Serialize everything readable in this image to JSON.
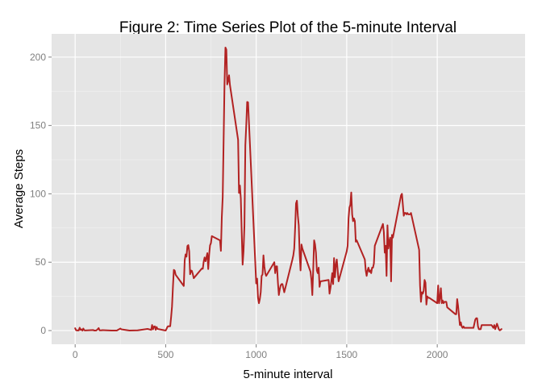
{
  "chart_data": {
    "type": "line",
    "title": "Figure 2: Time Series Plot of the 5-minute Interval",
    "xlabel": "5-minute interval",
    "ylabel": "Average Steps",
    "xlim": [
      -130,
      2485
    ],
    "ylim": [
      -10,
      217
    ],
    "xticks": [
      0,
      500,
      1000,
      1500,
      2000
    ],
    "xtick_labels": [
      "0",
      "500",
      "1000",
      "1500",
      "2000"
    ],
    "yticks": [
      0,
      50,
      100,
      150,
      200
    ],
    "ytick_labels": [
      "0",
      "50",
      "100",
      "150",
      "200"
    ],
    "grid": true,
    "background": "#e5e5e5",
    "grid_color": "#ffffff",
    "series": [
      {
        "name": "Average Steps",
        "color": "#b22222",
        "x": [
          0,
          5,
          10,
          15,
          20,
          25,
          30,
          35,
          40,
          45,
          50,
          55,
          100,
          105,
          110,
          115,
          120,
          125,
          130,
          135,
          140,
          145,
          150,
          200,
          230,
          250,
          255,
          300,
          345,
          400,
          420,
          425,
          430,
          435,
          440,
          445,
          450,
          455,
          500,
          505,
          510,
          515,
          520,
          525,
          530,
          535,
          540,
          545,
          550,
          555,
          600,
          605,
          610,
          615,
          620,
          625,
          630,
          635,
          640,
          645,
          650,
          655,
          700,
          705,
          710,
          715,
          720,
          725,
          730,
          735,
          740,
          745,
          750,
          755,
          800,
          805,
          810,
          815,
          820,
          825,
          830,
          835,
          840,
          845,
          850,
          855,
          900,
          905,
          910,
          915,
          920,
          925,
          930,
          935,
          940,
          945,
          950,
          955,
          1000,
          1005,
          1010,
          1015,
          1020,
          1025,
          1030,
          1035,
          1040,
          1045,
          1050,
          1055,
          1100,
          1105,
          1110,
          1115,
          1120,
          1125,
          1130,
          1135,
          1140,
          1145,
          1150,
          1155,
          1200,
          1205,
          1210,
          1215,
          1220,
          1225,
          1230,
          1235,
          1240,
          1245,
          1250,
          1255,
          1300,
          1305,
          1310,
          1315,
          1320,
          1325,
          1330,
          1335,
          1340,
          1345,
          1350,
          1355,
          1400,
          1405,
          1410,
          1415,
          1420,
          1425,
          1430,
          1435,
          1440,
          1445,
          1450,
          1455,
          1500,
          1505,
          1510,
          1515,
          1520,
          1525,
          1530,
          1535,
          1540,
          1545,
          1550,
          1555,
          1600,
          1605,
          1610,
          1615,
          1620,
          1625,
          1630,
          1635,
          1640,
          1645,
          1650,
          1655,
          1700,
          1705,
          1710,
          1715,
          1720,
          1725,
          1730,
          1735,
          1740,
          1745,
          1750,
          1755,
          1800,
          1805,
          1810,
          1815,
          1820,
          1825,
          1830,
          1835,
          1840,
          1845,
          1850,
          1855,
          1900,
          1905,
          1910,
          1915,
          1920,
          1925,
          1930,
          1935,
          1940,
          1945,
          1950,
          1955,
          2000,
          2005,
          2010,
          2015,
          2020,
          2025,
          2030,
          2035,
          2040,
          2045,
          2050,
          2055,
          2100,
          2105,
          2110,
          2115,
          2120,
          2125,
          2130,
          2135,
          2140,
          2145,
          2150,
          2155,
          2200,
          2205,
          2210,
          2215,
          2220,
          2225,
          2230,
          2235,
          2240,
          2245,
          2250,
          2255,
          2300,
          2305,
          2310,
          2315,
          2320,
          2325,
          2330,
          2335,
          2340,
          2345,
          2350,
          2355
        ],
        "values": [
          1.7,
          0.3,
          0.1,
          0.2,
          0.1,
          2.1,
          0.5,
          0.9,
          0,
          1.5,
          0.3,
          0.1,
          0.4,
          0,
          0,
          0,
          0.4,
          1.1,
          1.8,
          0.2,
          0.2,
          0.2,
          0.3,
          0,
          0,
          1.5,
          0.9,
          0,
          0.2,
          1.2,
          0.5,
          4.1,
          0.9,
          2.9,
          3.1,
          0.5,
          2.6,
          1.2,
          0,
          1.3,
          2.8,
          3.2,
          3.1,
          3.2,
          9.8,
          17.6,
          31.8,
          44.4,
          43.8,
          40.8,
          32.6,
          51.3,
          55.7,
          54.1,
          61.8,
          62.5,
          57.9,
          41.2,
          43.9,
          43.6,
          41.3,
          38.3,
          45.4,
          45.2,
          50.4,
          53.5,
          50.7,
          53.5,
          56.6,
          45.0,
          55.3,
          62.3,
          64.0,
          69.1,
          66.0,
          58.3,
          82.9,
          97.7,
          139.2,
          180.4,
          207.0,
          205.5,
          180.0,
          182.6,
          186.7,
          179.6,
          139.5,
          100.6,
          106.1,
          96.6,
          71.5,
          48.2,
          57.9,
          76.8,
          135.5,
          150.0,
          167.2,
          166.9,
          34.5,
          38.0,
          24.0,
          20.0,
          23.0,
          28.0,
          40.0,
          41.0,
          55.0,
          47.0,
          42.0,
          40.0,
          50.0,
          42.0,
          47.0,
          47.0,
          35.0,
          26.0,
          30.0,
          33.0,
          34.0,
          34.0,
          31.0,
          28.0,
          52.0,
          55.0,
          60.0,
          75.0,
          93.0,
          95.0,
          84.0,
          77.0,
          56.0,
          44.0,
          63.0,
          60.0,
          43.0,
          37.0,
          26.0,
          45.0,
          66.0,
          63.0,
          57.0,
          44.0,
          42.0,
          46.0,
          32.0,
          36.0,
          37.0,
          27.0,
          31.0,
          36.0,
          42.0,
          34.0,
          53.0,
          39.0,
          48.0,
          52.0,
          44.0,
          36.0,
          58.0,
          62.0,
          82.0,
          90.0,
          92.0,
          101.0,
          85.0,
          80.0,
          82.0,
          80.0,
          65.0,
          66.0,
          52.0,
          44.0,
          40.0,
          44.0,
          46.0,
          43.0,
          44.0,
          42.0,
          46.0,
          46.0,
          49.0,
          62.0,
          78.0,
          72.0,
          57.0,
          62.0,
          40.0,
          77.0,
          60.0,
          65.0,
          68.0,
          36.0,
          70.0,
          68.0,
          99.0,
          100.0,
          92.0,
          84.0,
          86.0,
          86.0,
          85.0,
          86.0,
          85.0,
          85.0,
          85.0,
          86.0,
          59.0,
          33.0,
          21.0,
          28.0,
          27.0,
          29.0,
          37.0,
          35.0,
          19.0,
          25.0,
          24.0,
          24.0,
          20.0,
          33.0,
          20.0,
          24.0,
          31.0,
          20.0,
          22.0,
          20.0,
          21.0,
          21.0,
          21.0,
          17.0,
          12.0,
          12.0,
          23.0,
          18.0,
          11.0,
          4.0,
          6.0,
          3.0,
          2.0,
          3.0,
          2.0,
          2.0,
          2.0,
          5.0,
          8.0,
          9.0,
          9.0,
          3.0,
          1.0,
          1.0,
          1.0,
          4.0,
          4.0,
          4.0,
          4.0,
          3.0,
          2.0,
          4.0,
          1.0,
          3.0,
          5.0,
          3.0,
          1.0,
          0.2,
          0.5,
          1.1
        ]
      }
    ]
  }
}
